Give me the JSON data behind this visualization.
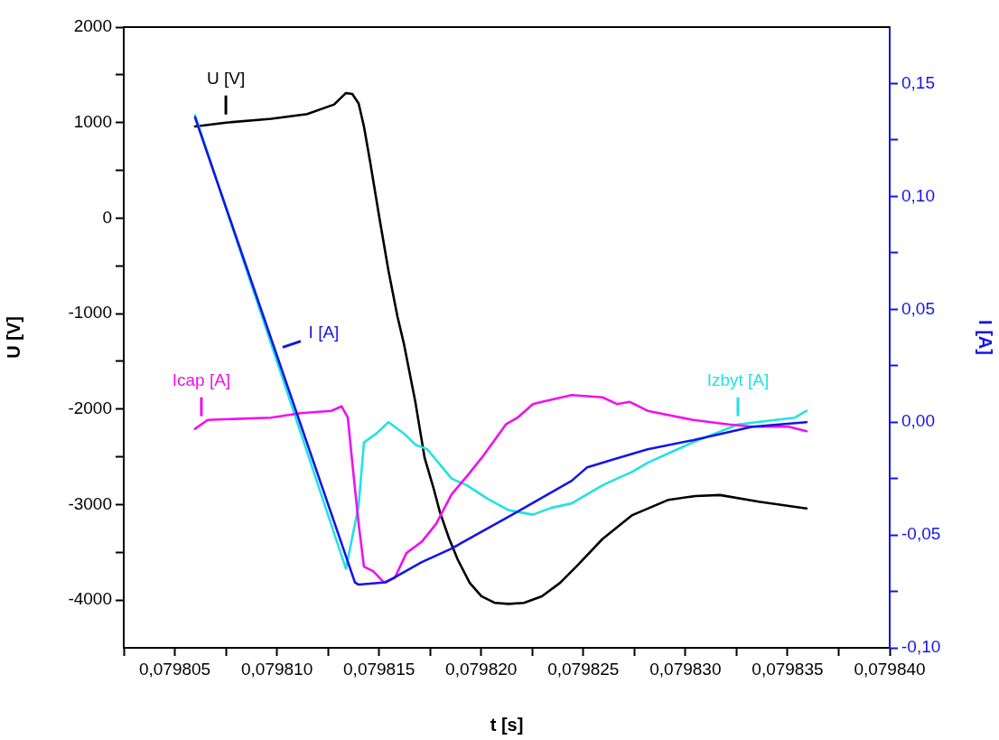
{
  "chart_data": {
    "type": "line",
    "xlabel": "t [s]",
    "ylabel": "U [V]",
    "y2label": "I [A]",
    "xlim": [
      0.0798025,
      0.07984
    ],
    "xticks": [
      {
        "value": 0.0798025,
        "label": null
      },
      {
        "value": 0.079805,
        "label": "0,079805"
      },
      {
        "value": 0.0798075,
        "label": null
      },
      {
        "value": 0.07981,
        "label": "0,079810"
      },
      {
        "value": 0.0798125,
        "label": null
      },
      {
        "value": 0.079815,
        "label": "0,079815"
      },
      {
        "value": 0.0798175,
        "label": null
      },
      {
        "value": 0.07982,
        "label": "0,079820"
      },
      {
        "value": 0.0798225,
        "label": null
      },
      {
        "value": 0.079825,
        "label": "0,079825"
      },
      {
        "value": 0.0798275,
        "label": null
      },
      {
        "value": 0.07983,
        "label": "0,079830"
      },
      {
        "value": 0.0798325,
        "label": null
      },
      {
        "value": 0.079835,
        "label": "0,079835"
      },
      {
        "value": 0.0798375,
        "label": null
      },
      {
        "value": 0.07984,
        "label": "0,079840"
      }
    ],
    "ylim": [
      -4500,
      2000
    ],
    "yticks": [
      -4000,
      {
        "value": -3500,
        "label": null
      },
      -3000,
      {
        "value": -2500,
        "label": null
      },
      -2000,
      {
        "value": -1500,
        "label": null
      },
      -1000,
      {
        "value": -500,
        "label": null
      },
      0,
      {
        "value": 500,
        "label": null
      },
      1000,
      {
        "value": 1500,
        "label": null
      },
      2000
    ],
    "y2lim": [
      -0.1,
      0.175
    ],
    "y2ticks": [
      {
        "value": -0.1,
        "label": "-0,10"
      },
      {
        "value": -0.075,
        "label": null
      },
      {
        "value": -0.05,
        "label": "-0,05"
      },
      {
        "value": -0.025,
        "label": null
      },
      {
        "value": 0,
        "label": "0,00"
      },
      {
        "value": 0.025,
        "label": null
      },
      {
        "value": 0.05,
        "label": "0,05"
      },
      {
        "value": 0.075,
        "label": null
      },
      {
        "value": 0.1,
        "label": "0,10"
      },
      {
        "value": 0.125,
        "label": null
      },
      {
        "value": 0.15,
        "label": "0,15"
      }
    ],
    "grid": false,
    "legend": false,
    "marker": "none",
    "line_style": "solid",
    "series": [
      {
        "name": "U [V]",
        "color": "#000000",
        "x": [
          0.07980599,
          0.0798075,
          0.07980971,
          0.07981148,
          0.0798128,
          0.07981338,
          0.07981369,
          0.079814,
          0.07981426,
          0.07981457,
          0.07981501,
          0.07981546,
          0.0798159,
          0.07981621,
          0.07981678,
          0.07981723,
          0.07981767,
          0.07981798,
          0.07981842,
          0.07981886,
          0.07981944,
          0.07982001,
          0.07982068,
          0.07982134,
          0.07982209,
          0.07982297,
          0.07982386,
          0.07982474,
          0.07982594,
          0.0798274,
          0.07982917,
          0.07983049,
          0.07983169,
          0.07983359,
          0.07983593
        ],
        "values": [
          960,
          1000,
          1040,
          1090,
          1190,
          1310,
          1300,
          1200,
          960,
          580,
          10,
          -550,
          -1030,
          -1310,
          -1930,
          -2510,
          -2830,
          -3080,
          -3350,
          -3580,
          -3820,
          -3960,
          -4030,
          -4040,
          -4030,
          -3960,
          -3820,
          -3630,
          -3360,
          -3110,
          -2950,
          -2910,
          -2900,
          -2970,
          -3040
        ]
      },
      {
        "name": "Izbyt [A]",
        "axis": "y2",
        "color": "#22e2e2",
        "x": [
          0.07980599,
          0.07981338,
          0.079814,
          0.07981426,
          0.07981488,
          0.07981546,
          0.07981621,
          0.07981678,
          0.07981736,
          0.07981855,
          0.0798193,
          0.07982032,
          0.07982134,
          0.07982253,
          0.07982342,
          0.07982443,
          0.07982594,
          0.07982665,
          0.0798274,
          0.07982815,
          0.07983036,
          0.07983257,
          0.07983536,
          0.07983593
        ],
        "values": [
          0.136,
          -0.065,
          -0.037,
          -0.009,
          -0.005,
          0.0,
          -0.005,
          -0.01,
          -0.012,
          -0.025,
          -0.028,
          -0.034,
          -0.039,
          -0.041,
          -0.038,
          -0.036,
          -0.028,
          -0.025,
          -0.022,
          -0.018,
          -0.009,
          -0.001,
          0.002,
          0.005
        ]
      },
      {
        "name": "Icap [A]",
        "axis": "y2",
        "color": "#f010f0",
        "x": [
          0.07980599,
          0.07980661,
          0.07980971,
          0.07981117,
          0.07981267,
          0.07981316,
          0.07981347,
          0.07981369,
          0.079814,
          0.07981426,
          0.07981471,
          0.07981524,
          0.07981577,
          0.07981634,
          0.07981709,
          0.0798178,
          0.07981855,
          0.0798193,
          0.07982001,
          0.07982121,
          0.07982178,
          0.07982253,
          0.07982297,
          0.07982443,
          0.07982594,
          0.07982665,
          0.07982726,
          0.07982815,
          0.07983036,
          0.07983213,
          0.07983328,
          0.07983505,
          0.07983593
        ],
        "values": [
          -0.003,
          0.001,
          0.002,
          0.004,
          0.005,
          0.007,
          0.002,
          -0.018,
          -0.045,
          -0.064,
          -0.066,
          -0.071,
          -0.069,
          -0.058,
          -0.053,
          -0.045,
          -0.032,
          -0.024,
          -0.016,
          -0.001,
          0.002,
          0.008,
          0.009,
          0.012,
          0.011,
          0.008,
          0.009,
          0.005,
          0.001,
          -0.001,
          -0.002,
          -0.002,
          -0.004
        ]
      },
      {
        "name": "I [A]",
        "axis": "y2",
        "color": "#1414e6",
        "x": [
          0.07980599,
          0.07981382,
          0.079814,
          0.07981532,
          0.07981709,
          0.07981855,
          0.07982152,
          0.07982443,
          0.07982519,
          0.0798274,
          0.07982815,
          0.07983036,
          0.07983328,
          0.07983593
        ],
        "values": [
          0.135,
          -0.071,
          -0.072,
          -0.071,
          -0.062,
          -0.056,
          -0.041,
          -0.026,
          -0.02,
          -0.014,
          -0.012,
          -0.008,
          -0.002,
          0.0
        ]
      }
    ]
  }
}
